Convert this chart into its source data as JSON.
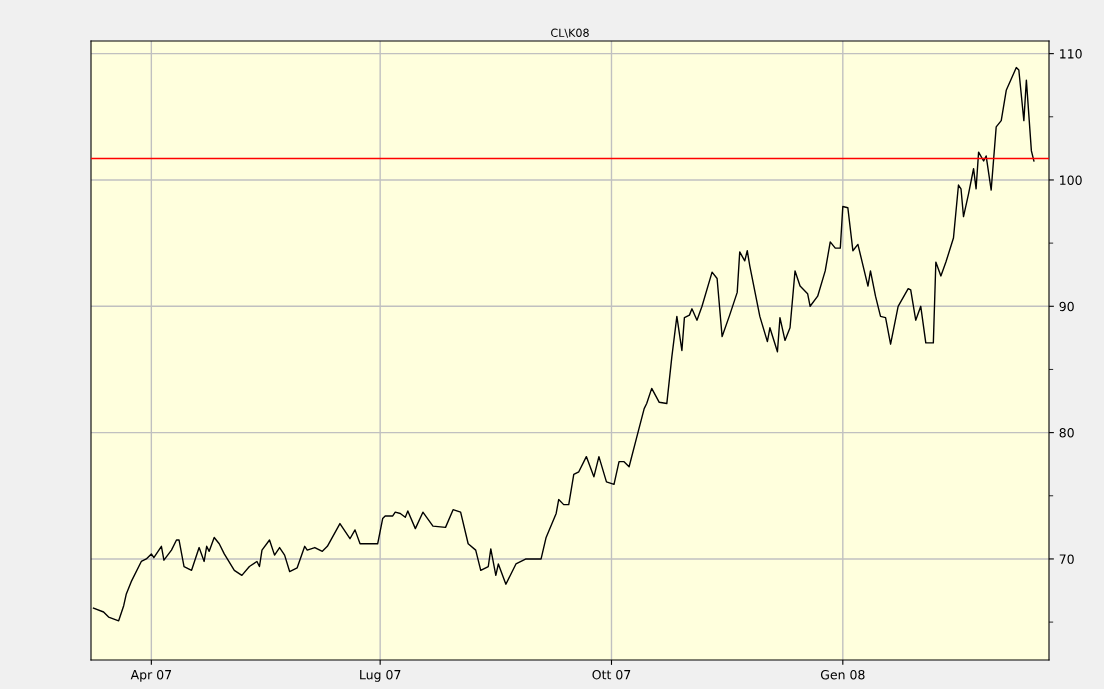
{
  "chart_data": {
    "type": "line",
    "title": "CL\\K08",
    "x": [
      "2007-03-09",
      "2007-03-13",
      "2007-03-15",
      "2007-03-19",
      "2007-03-21",
      "2007-03-22",
      "2007-03-24",
      "2007-03-28",
      "2007-03-30",
      "2007-04-01",
      "2007-04-02",
      "2007-04-05",
      "2007-04-06",
      "2007-04-09",
      "2007-04-11",
      "2007-04-12",
      "2007-04-14",
      "2007-04-17",
      "2007-04-20",
      "2007-04-22",
      "2007-04-23",
      "2007-04-24",
      "2007-04-26",
      "2007-04-28",
      "2007-04-30",
      "2007-05-04",
      "2007-05-07",
      "2007-05-10",
      "2007-05-13",
      "2007-05-14",
      "2007-05-15",
      "2007-05-18",
      "2007-05-20",
      "2007-05-22",
      "2007-05-24",
      "2007-05-26",
      "2007-05-29",
      "2007-06-01",
      "2007-06-02",
      "2007-06-05",
      "2007-06-08",
      "2007-06-10",
      "2007-06-15",
      "2007-06-19",
      "2007-06-21",
      "2007-06-23",
      "2007-06-30",
      "2007-07-02",
      "2007-07-03",
      "2007-07-06",
      "2007-07-07",
      "2007-07-09",
      "2007-07-11",
      "2007-07-12",
      "2007-07-15",
      "2007-07-18",
      "2007-07-22",
      "2007-07-27",
      "2007-07-30",
      "2007-08-02",
      "2007-08-05",
      "2007-08-08",
      "2007-08-10",
      "2007-08-13",
      "2007-08-14",
      "2007-08-16",
      "2007-08-17",
      "2007-08-20",
      "2007-08-24",
      "2007-08-28",
      "2007-09-03",
      "2007-09-05",
      "2007-09-09",
      "2007-09-10",
      "2007-09-12",
      "2007-09-14",
      "2007-09-16",
      "2007-09-18",
      "2007-09-21",
      "2007-09-24",
      "2007-09-26",
      "2007-09-29",
      "2007-10-02",
      "2007-10-04",
      "2007-10-06",
      "2007-10-08",
      "2007-10-11",
      "2007-10-14",
      "2007-10-15",
      "2007-10-17",
      "2007-10-20",
      "2007-10-23",
      "2007-10-25",
      "2007-10-27",
      "2007-10-29",
      "2007-10-30",
      "2007-11-01",
      "2007-11-02",
      "2007-11-04",
      "2007-11-06",
      "2007-11-10",
      "2007-11-12",
      "2007-11-14",
      "2007-11-17",
      "2007-11-20",
      "2007-11-21",
      "2007-11-23",
      "2007-11-24",
      "2007-11-25",
      "2007-11-29",
      "2007-12-02",
      "2007-12-03",
      "2007-12-06",
      "2007-12-07",
      "2007-12-09",
      "2007-12-11",
      "2007-12-13",
      "2007-12-15",
      "2007-12-18",
      "2007-12-19",
      "2007-12-22",
      "2007-12-25",
      "2007-12-27",
      "2007-12-29",
      "2007-12-31",
      "2008-01-01",
      "2008-01-03",
      "2008-01-05",
      "2008-01-07",
      "2008-01-11",
      "2008-01-12",
      "2008-01-14",
      "2008-01-16",
      "2008-01-18",
      "2008-01-20",
      "2008-01-23",
      "2008-01-27",
      "2008-01-28",
      "2008-01-30",
      "2008-02-01",
      "2008-02-03",
      "2008-02-06",
      "2008-02-07",
      "2008-02-09",
      "2008-02-11",
      "2008-02-14",
      "2008-02-16",
      "2008-02-17",
      "2008-02-18",
      "2008-02-20",
      "2008-02-22",
      "2008-02-23",
      "2008-02-24",
      "2008-02-26",
      "2008-02-27",
      "2008-02-29",
      "2008-03-02",
      "2008-03-04",
      "2008-03-06",
      "2008-03-10",
      "2008-03-11",
      "2008-03-13",
      "2008-03-14",
      "2008-03-16",
      "2008-03-17"
    ],
    "series": [
      {
        "color": "#000000",
        "values": [
          66.1,
          65.8,
          65.4,
          65.1,
          66.3,
          67.2,
          68.2,
          69.8,
          70.0,
          70.4,
          70.1,
          71.0,
          69.9,
          70.7,
          71.5,
          71.5,
          69.4,
          69.1,
          70.9,
          69.8,
          71.0,
          70.6,
          71.7,
          71.2,
          70.4,
          69.1,
          68.7,
          69.4,
          69.8,
          69.4,
          70.7,
          71.5,
          70.3,
          70.9,
          70.3,
          69.0,
          69.3,
          71.0,
          70.7,
          70.9,
          70.6,
          71.0,
          72.8,
          71.6,
          72.3,
          71.2,
          71.2,
          73.2,
          73.4,
          73.4,
          73.7,
          73.6,
          73.3,
          73.8,
          72.4,
          73.7,
          72.6,
          72.5,
          73.9,
          73.7,
          71.2,
          70.7,
          69.1,
          69.4,
          70.8,
          68.7,
          69.6,
          68.0,
          69.6,
          70.0,
          70.0,
          71.7,
          73.6,
          74.7,
          74.3,
          74.3,
          76.7,
          76.9,
          78.1,
          76.5,
          78.1,
          76.1,
          75.9,
          77.7,
          77.7,
          77.3,
          79.6,
          81.9,
          82.3,
          83.5,
          82.4,
          82.3,
          86.0,
          89.2,
          86.5,
          89.1,
          89.3,
          89.8,
          88.9,
          90.0,
          92.7,
          92.2,
          87.6,
          89.3,
          91.1,
          94.3,
          93.6,
          94.4,
          93.2,
          89.2,
          87.2,
          88.3,
          86.4,
          89.1,
          87.3,
          88.3,
          92.8,
          91.6,
          91.0,
          90.0,
          90.8,
          92.8,
          95.1,
          94.6,
          94.6,
          97.9,
          97.8,
          94.4,
          94.9,
          91.6,
          92.8,
          90.8,
          89.2,
          89.1,
          87.0,
          90.0,
          91.4,
          91.3,
          88.9,
          90.0,
          87.1,
          87.1,
          93.5,
          92.4,
          93.5,
          95.4,
          99.6,
          99.3,
          97.1,
          98.9,
          100.9,
          99.3,
          102.2,
          101.5,
          101.9,
          99.2,
          104.2,
          104.7,
          107.1,
          108.9,
          108.7,
          104.7,
          107.9,
          102.3,
          101.5
        ]
      }
    ],
    "xlim": [
      "2007-03-08",
      "2008-03-23"
    ],
    "xticks": [
      {
        "value": "2007-04-01",
        "label": "Apr 07"
      },
      {
        "value": "2007-07-01",
        "label": "Lug 07"
      },
      {
        "value": "2007-10-01",
        "label": "Ott 07"
      },
      {
        "value": "2008-01-01",
        "label": "Gen 08"
      }
    ],
    "ylim": [
      62,
      111
    ],
    "yticks": [
      {
        "value": 65,
        "label": null
      },
      70,
      {
        "value": 75,
        "label": null
      },
      80,
      {
        "value": 85,
        "label": null
      },
      90,
      {
        "value": 95,
        "label": null
      },
      100,
      {
        "value": 105,
        "label": null
      },
      110
    ],
    "ref_lines": [
      {
        "axis": "y",
        "value": 101.7,
        "color": "#ff0000"
      }
    ],
    "grid": true,
    "marker": "none",
    "line_style": "solid",
    "legend": false
  }
}
